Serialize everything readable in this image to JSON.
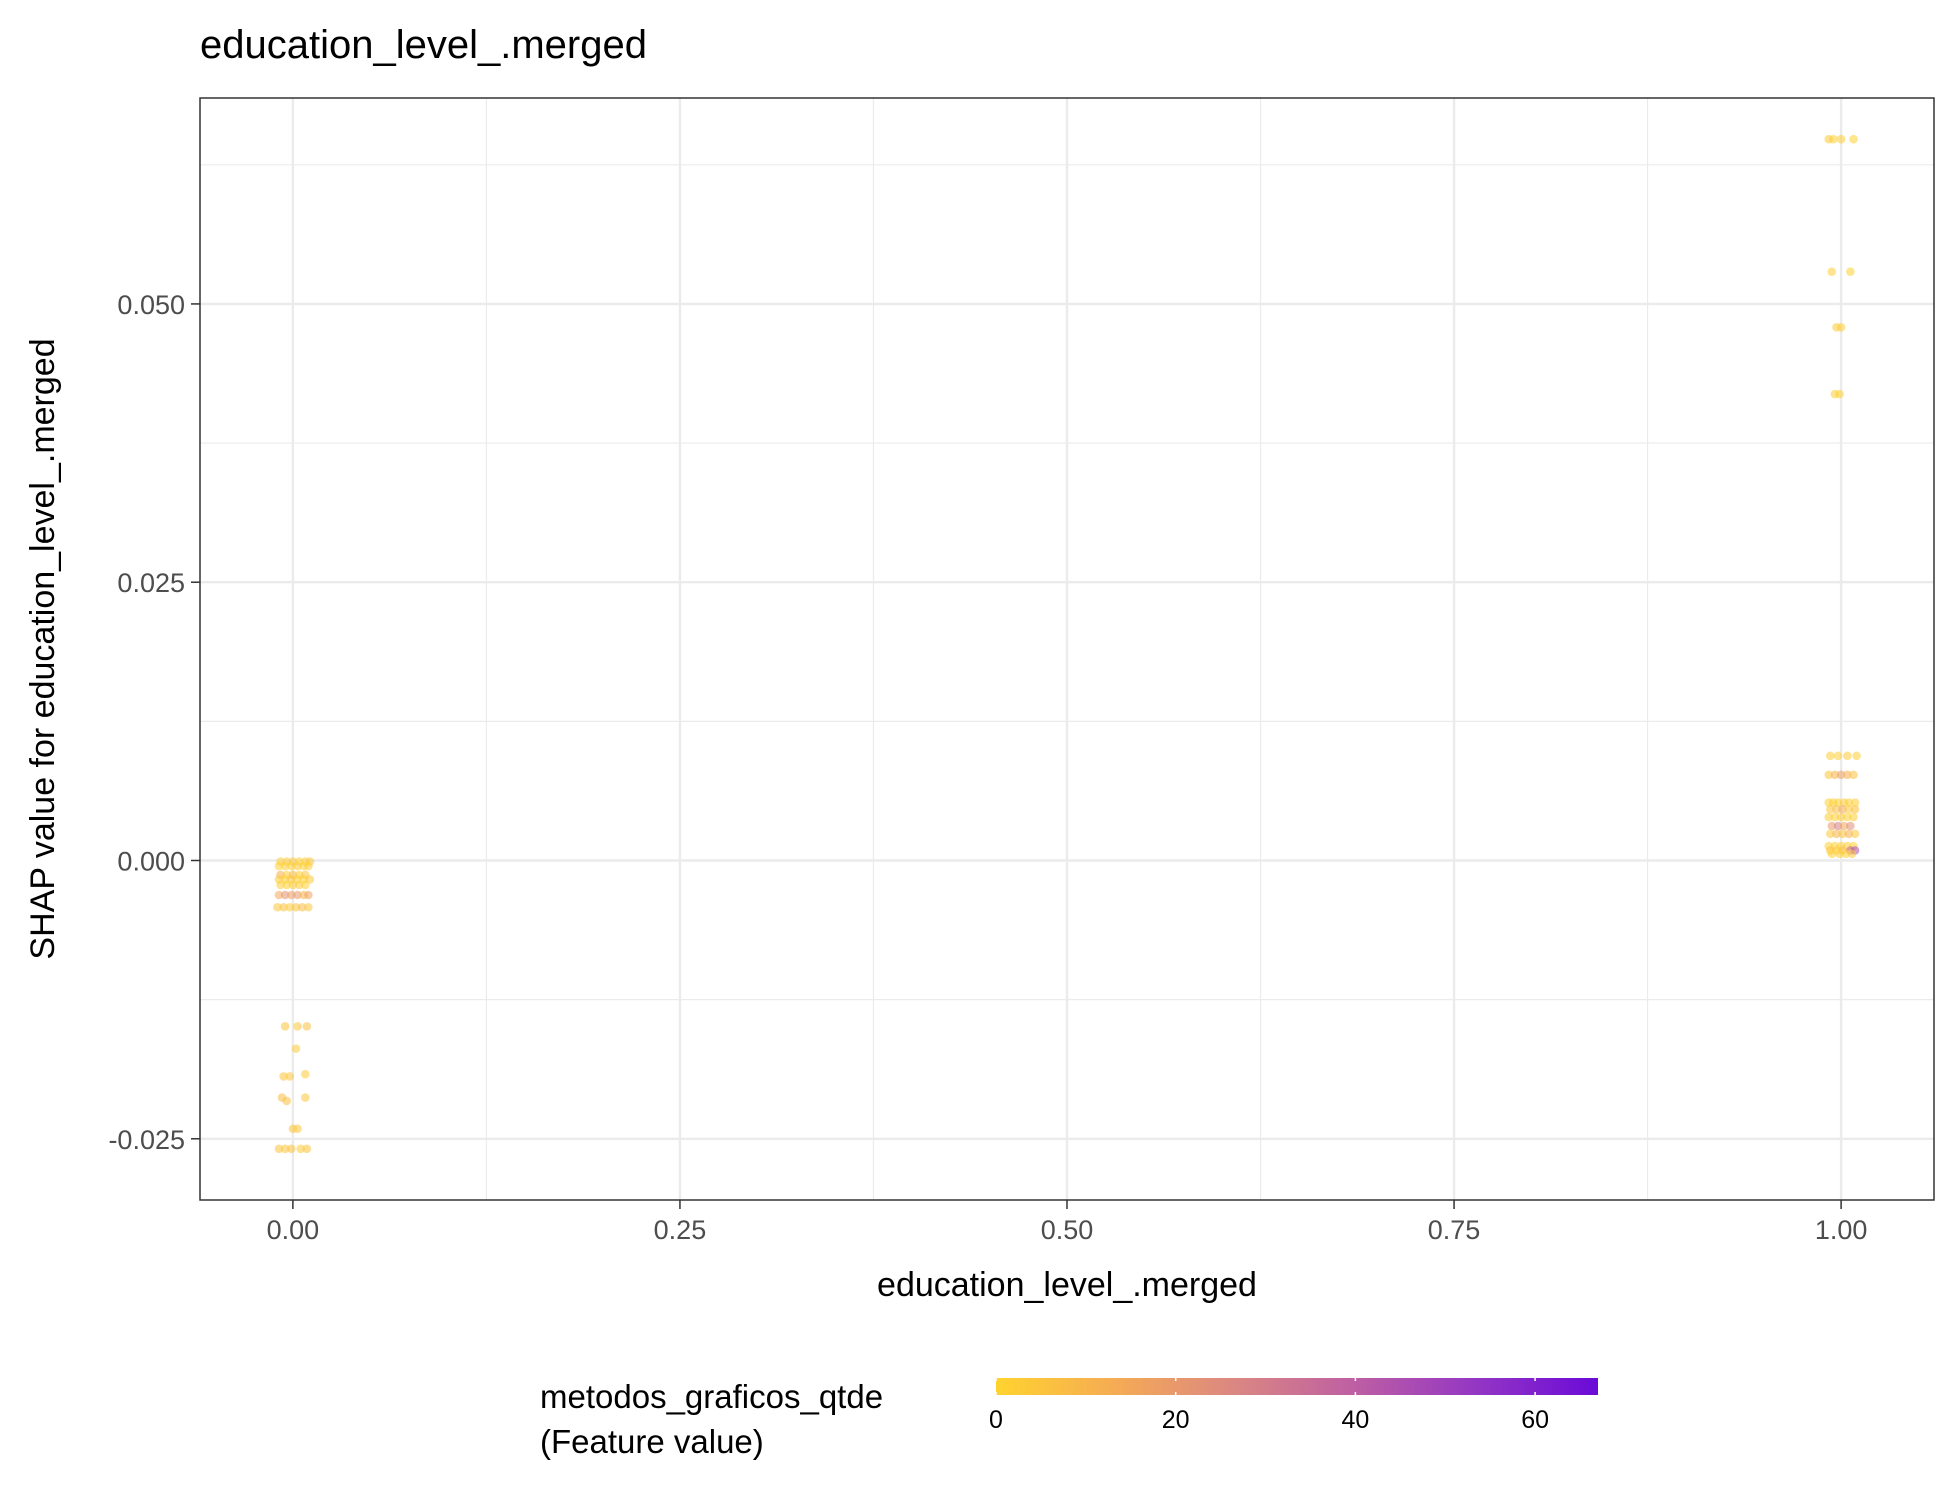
{
  "chart_data": {
    "type": "scatter",
    "title": "education_level_.merged",
    "xlabel": "education_level_.merged",
    "ylabel": "SHAP value for education_level_.merged",
    "xlim": [
      -0.06,
      1.06
    ],
    "ylim": [
      -0.0305,
      0.0685
    ],
    "x_ticks": [
      0.0,
      0.25,
      0.5,
      0.75,
      1.0
    ],
    "x_tick_labels": [
      "0.00",
      "0.25",
      "0.50",
      "0.75",
      "1.00"
    ],
    "y_ticks": [
      -0.025,
      0.0,
      0.025,
      0.05
    ],
    "y_tick_labels": [
      "-0.025",
      "0.000",
      "0.025",
      "0.050"
    ],
    "grid": true,
    "legend": {
      "title_line1": "metodos_graficos_qtde",
      "title_line2": "(Feature value)",
      "position": "bottom",
      "min": 0,
      "max": 67,
      "ticks": [
        0,
        20,
        40,
        60
      ],
      "tick_labels": [
        "0",
        "20",
        "40",
        "60"
      ],
      "colors": [
        "#FFD32F",
        "#F5AB55",
        "#DA8683",
        "#BD5EA4",
        "#9336C4",
        "#6A0AD8"
      ]
    },
    "points": [
      [
        0.995,
        0.0648,
        1
      ],
      [
        1.0,
        0.0648,
        2
      ],
      [
        1.008,
        0.0648,
        1
      ],
      [
        0.992,
        0.0648,
        3
      ],
      [
        0.994,
        0.0529,
        2
      ],
      [
        1.006,
        0.0529,
        1
      ],
      [
        0.997,
        0.0479,
        3
      ],
      [
        1.0,
        0.0479,
        2
      ],
      [
        0.996,
        0.0419,
        2
      ],
      [
        0.999,
        0.0419,
        1
      ],
      [
        0.993,
        0.0094,
        2
      ],
      [
        0.998,
        0.0094,
        1
      ],
      [
        1.004,
        0.0094,
        3
      ],
      [
        1.01,
        0.0094,
        2
      ],
      [
        0.992,
        0.0077,
        5
      ],
      [
        0.996,
        0.0077,
        10
      ],
      [
        1.0,
        0.0077,
        18
      ],
      [
        1.004,
        0.0077,
        12
      ],
      [
        1.008,
        0.0077,
        6
      ],
      [
        0.992,
        0.0052,
        1
      ],
      [
        0.995,
        0.0052,
        2
      ],
      [
        0.998,
        0.0052,
        1
      ],
      [
        1.002,
        0.0052,
        3
      ],
      [
        1.005,
        0.0052,
        1
      ],
      [
        1.009,
        0.0052,
        2
      ],
      [
        0.993,
        0.0046,
        4
      ],
      [
        0.997,
        0.0046,
        8
      ],
      [
        1.001,
        0.0046,
        14
      ],
      [
        1.005,
        0.0046,
        3
      ],
      [
        1.009,
        0.0046,
        6
      ],
      [
        0.992,
        0.0039,
        2
      ],
      [
        0.996,
        0.0039,
        1
      ],
      [
        1.0,
        0.0039,
        3
      ],
      [
        1.004,
        0.0039,
        1
      ],
      [
        1.008,
        0.0039,
        2
      ],
      [
        0.994,
        0.0031,
        20
      ],
      [
        0.998,
        0.0031,
        28
      ],
      [
        1.002,
        0.0031,
        15
      ],
      [
        1.006,
        0.0031,
        24
      ],
      [
        0.993,
        0.0024,
        3
      ],
      [
        0.997,
        0.0024,
        10
      ],
      [
        1.001,
        0.0024,
        5
      ],
      [
        1.005,
        0.0024,
        12
      ],
      [
        1.009,
        0.0024,
        4
      ],
      [
        0.992,
        0.0013,
        1
      ],
      [
        0.996,
        0.0013,
        2
      ],
      [
        1.0,
        0.0013,
        1
      ],
      [
        1.004,
        0.0013,
        2
      ],
      [
        1.008,
        0.0013,
        1
      ],
      [
        0.993,
        0.0009,
        6
      ],
      [
        0.997,
        0.0009,
        3
      ],
      [
        1.001,
        0.0009,
        7
      ],
      [
        1.006,
        0.0009,
        38
      ],
      [
        1.009,
        0.0009,
        45
      ],
      [
        0.994,
        0.0006,
        1
      ],
      [
        0.999,
        0.0006,
        2
      ],
      [
        1.003,
        0.0006,
        1
      ],
      [
        1.007,
        0.0006,
        3
      ],
      [
        -0.008,
        -0.0001,
        2
      ],
      [
        -0.004,
        -0.0001,
        3
      ],
      [
        0.0,
        -0.0001,
        5
      ],
      [
        0.004,
        -0.0001,
        1
      ],
      [
        0.008,
        -0.0001,
        2
      ],
      [
        0.011,
        -0.0001,
        4
      ],
      [
        -0.009,
        -0.0005,
        1
      ],
      [
        -0.005,
        -0.0005,
        2
      ],
      [
        -0.001,
        -0.0005,
        1
      ],
      [
        0.003,
        -0.0005,
        3
      ],
      [
        0.007,
        -0.0005,
        1
      ],
      [
        0.01,
        -0.0005,
        2
      ],
      [
        -0.008,
        -0.0013,
        12
      ],
      [
        -0.004,
        -0.0013,
        2
      ],
      [
        0.0,
        -0.0013,
        8
      ],
      [
        0.004,
        -0.0013,
        1
      ],
      [
        0.008,
        -0.0013,
        5
      ],
      [
        -0.009,
        -0.0017,
        3
      ],
      [
        -0.005,
        -0.0017,
        1
      ],
      [
        -0.001,
        -0.0017,
        4
      ],
      [
        0.003,
        -0.0017,
        2
      ],
      [
        0.007,
        -0.0017,
        1
      ],
      [
        0.011,
        -0.0017,
        3
      ],
      [
        -0.008,
        -0.0022,
        2
      ],
      [
        -0.004,
        -0.0022,
        1
      ],
      [
        0.0,
        -0.0022,
        2
      ],
      [
        0.004,
        -0.0022,
        3
      ],
      [
        0.008,
        -0.0022,
        1
      ],
      [
        -0.009,
        -0.0031,
        14
      ],
      [
        -0.005,
        -0.0031,
        22
      ],
      [
        -0.001,
        -0.0031,
        18
      ],
      [
        0.003,
        -0.0031,
        20
      ],
      [
        0.007,
        -0.0031,
        10
      ],
      [
        0.01,
        -0.0031,
        16
      ],
      [
        -0.01,
        -0.0042,
        4
      ],
      [
        -0.006,
        -0.0042,
        6
      ],
      [
        -0.002,
        -0.0042,
        3
      ],
      [
        0.002,
        -0.0042,
        5
      ],
      [
        0.006,
        -0.0042,
        8
      ],
      [
        0.01,
        -0.0042,
        4
      ],
      [
        -0.005,
        -0.0149,
        5
      ],
      [
        0.003,
        -0.0149,
        4
      ],
      [
        0.009,
        -0.0149,
        6
      ],
      [
        0.002,
        -0.0169,
        3
      ],
      [
        -0.006,
        -0.0194,
        5
      ],
      [
        -0.002,
        -0.0194,
        4
      ],
      [
        0.008,
        -0.0192,
        3
      ],
      [
        -0.007,
        -0.0213,
        7
      ],
      [
        -0.004,
        -0.0216,
        6
      ],
      [
        0.008,
        -0.0213,
        4
      ],
      [
        0.0,
        -0.0241,
        5
      ],
      [
        0.003,
        -0.0241,
        4
      ],
      [
        -0.009,
        -0.0259,
        5
      ],
      [
        -0.005,
        -0.0259,
        4
      ],
      [
        -0.001,
        -0.0259,
        6
      ],
      [
        0.005,
        -0.0259,
        3
      ],
      [
        0.009,
        -0.0259,
        5
      ]
    ]
  }
}
